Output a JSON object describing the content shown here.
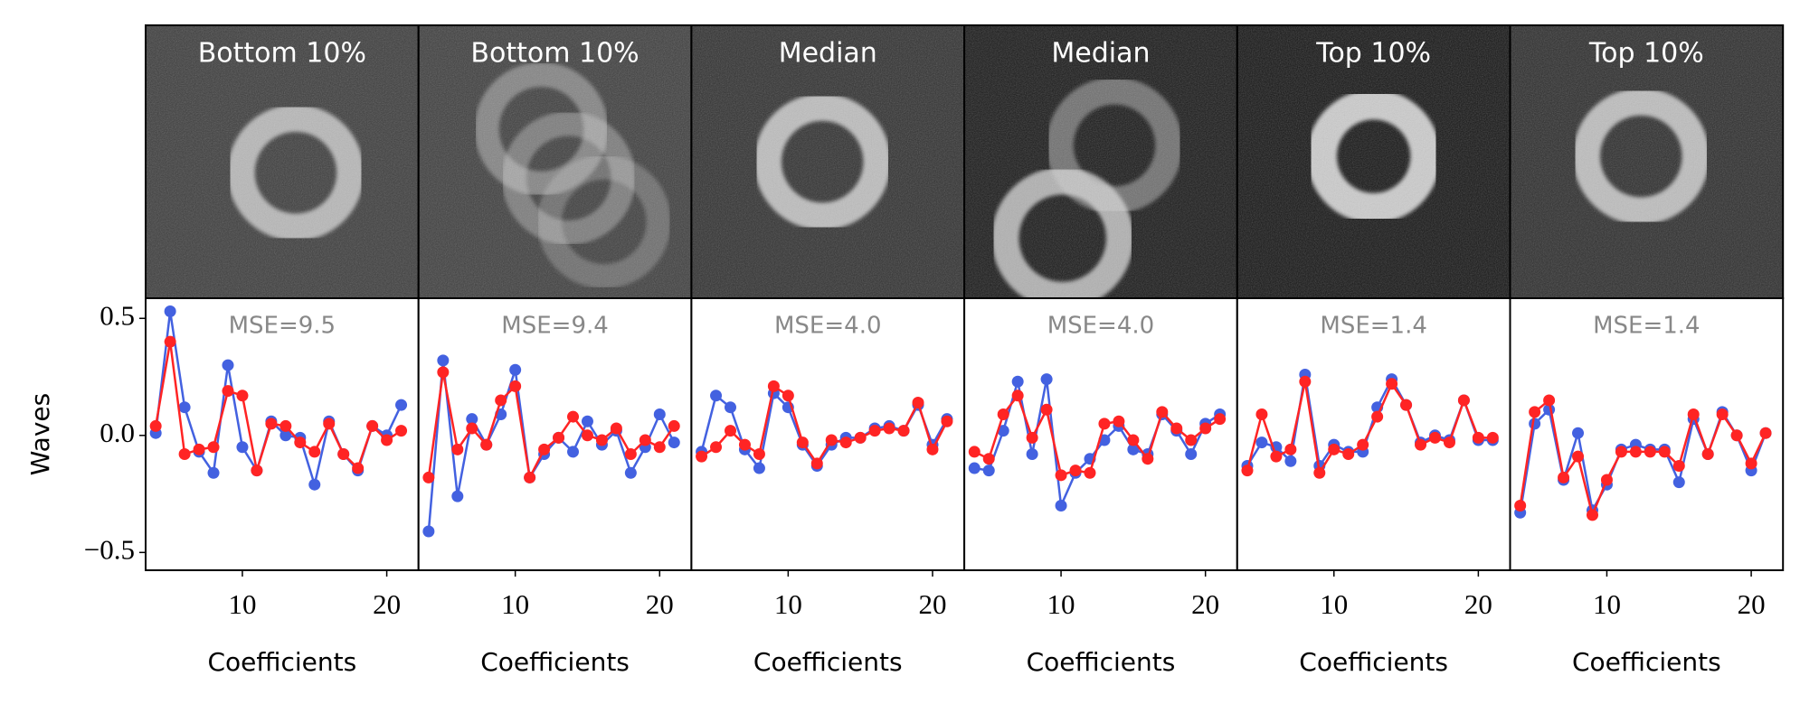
{
  "chart_data": [
    {
      "type": "line",
      "title": "Bottom 10%",
      "annotation": "MSE=9.5",
      "xlabel": "Coefficients",
      "ylabel": "Waves",
      "x": [
        4,
        5,
        6,
        7,
        8,
        9,
        10,
        11,
        12,
        13,
        14,
        15,
        16,
        17,
        18,
        19,
        20,
        21
      ],
      "series": [
        {
          "color": "#4361e0",
          "values": [
            0.01,
            0.53,
            0.12,
            -0.07,
            -0.16,
            0.3,
            -0.05,
            -0.15,
            0.06,
            0.0,
            -0.01,
            -0.21,
            0.06,
            -0.08,
            -0.15,
            0.04,
            0.0,
            0.13
          ]
        },
        {
          "color": "#ff2424",
          "values": [
            0.04,
            0.4,
            -0.08,
            -0.06,
            -0.05,
            0.19,
            0.17,
            -0.15,
            0.05,
            0.04,
            -0.03,
            -0.07,
            0.05,
            -0.08,
            -0.14,
            0.04,
            -0.02,
            0.02
          ]
        }
      ],
      "xlim": [
        3.3,
        22.2
      ],
      "ylim": [
        -0.576,
        0.586
      ],
      "xticks": [
        10,
        20
      ],
      "yticks": [
        {
          "value": -0.5,
          "label": "−0.5"
        },
        {
          "value": 0,
          "label": "0.0"
        },
        {
          "value": 0.5,
          "label": "0.5"
        }
      ]
    },
    {
      "type": "line",
      "title": "Bottom 10%",
      "annotation": "MSE=9.4",
      "xlabel": "Coefficients",
      "x": [
        4,
        5,
        6,
        7,
        8,
        9,
        10,
        11,
        12,
        13,
        14,
        15,
        16,
        17,
        18,
        19,
        20,
        21
      ],
      "series": [
        {
          "color": "#4361e0",
          "values": [
            -0.41,
            0.32,
            -0.26,
            0.07,
            -0.04,
            0.09,
            0.28,
            -0.18,
            -0.08,
            -0.01,
            -0.07,
            0.06,
            -0.04,
            0.02,
            -0.16,
            -0.05,
            0.09,
            -0.03
          ]
        },
        {
          "color": "#ff2424",
          "values": [
            -0.18,
            0.27,
            -0.06,
            0.03,
            -0.04,
            0.15,
            0.21,
            -0.18,
            -0.06,
            -0.01,
            0.08,
            0.0,
            -0.02,
            0.03,
            -0.08,
            -0.02,
            -0.05,
            0.04
          ]
        }
      ],
      "xlim": [
        3.3,
        22.2
      ],
      "ylim": [
        -0.576,
        0.586
      ],
      "xticks": [
        10,
        20
      ]
    },
    {
      "type": "line",
      "title": "Median",
      "annotation": "MSE=4.0",
      "xlabel": "Coefficients",
      "x": [
        4,
        5,
        6,
        7,
        8,
        9,
        10,
        11,
        12,
        13,
        14,
        15,
        16,
        17,
        18,
        19,
        20,
        21
      ],
      "series": [
        {
          "color": "#4361e0",
          "values": [
            -0.07,
            0.17,
            0.12,
            -0.06,
            -0.14,
            0.18,
            0.12,
            -0.04,
            -0.13,
            -0.04,
            -0.01,
            -0.01,
            0.03,
            0.04,
            0.02,
            0.13,
            -0.04,
            0.07
          ]
        },
        {
          "color": "#ff2424",
          "values": [
            -0.09,
            -0.05,
            0.02,
            -0.04,
            -0.08,
            0.21,
            0.17,
            -0.03,
            -0.12,
            -0.02,
            -0.03,
            -0.01,
            0.02,
            0.03,
            0.02,
            0.14,
            -0.06,
            0.06
          ]
        }
      ],
      "xlim": [
        3.3,
        22.2
      ],
      "ylim": [
        -0.576,
        0.586
      ],
      "xticks": [
        10,
        20
      ]
    },
    {
      "type": "line",
      "title": "Median",
      "annotation": "MSE=4.0",
      "xlabel": "Coefficients",
      "x": [
        4,
        5,
        6,
        7,
        8,
        9,
        10,
        11,
        12,
        13,
        14,
        15,
        16,
        17,
        18,
        19,
        20,
        21
      ],
      "series": [
        {
          "color": "#4361e0",
          "values": [
            -0.14,
            -0.15,
            0.02,
            0.23,
            -0.08,
            0.24,
            -0.3,
            -0.16,
            -0.1,
            -0.02,
            0.04,
            -0.06,
            -0.08,
            0.09,
            0.02,
            -0.08,
            0.05,
            0.09
          ]
        },
        {
          "color": "#ff2424",
          "values": [
            -0.07,
            -0.1,
            0.09,
            0.17,
            -0.01,
            0.11,
            -0.17,
            -0.15,
            -0.16,
            0.05,
            0.06,
            -0.02,
            -0.1,
            0.1,
            0.03,
            -0.02,
            0.03,
            0.07
          ]
        }
      ],
      "xlim": [
        3.3,
        22.2
      ],
      "ylim": [
        -0.576,
        0.586
      ],
      "xticks": [
        10,
        20
      ]
    },
    {
      "type": "line",
      "title": "Top 10%",
      "annotation": "MSE=1.4",
      "xlabel": "Coefficients",
      "x": [
        4,
        5,
        6,
        7,
        8,
        9,
        10,
        11,
        12,
        13,
        14,
        15,
        16,
        17,
        18,
        19,
        20,
        21
      ],
      "series": [
        {
          "color": "#4361e0",
          "values": [
            -0.13,
            -0.03,
            -0.05,
            -0.11,
            0.26,
            -0.13,
            -0.04,
            -0.07,
            -0.07,
            0.12,
            0.24,
            0.13,
            -0.03,
            0.0,
            -0.02,
            0.15,
            -0.02,
            -0.02
          ]
        },
        {
          "color": "#ff2424",
          "values": [
            -0.15,
            0.09,
            -0.09,
            -0.06,
            0.23,
            -0.16,
            -0.06,
            -0.08,
            -0.04,
            0.08,
            0.22,
            0.13,
            -0.04,
            -0.01,
            -0.03,
            0.15,
            -0.01,
            -0.01
          ]
        }
      ],
      "xlim": [
        3.3,
        22.2
      ],
      "ylim": [
        -0.576,
        0.586
      ],
      "xticks": [
        10,
        20
      ]
    },
    {
      "type": "line",
      "title": "Top 10%",
      "annotation": "MSE=1.4",
      "xlabel": "Coefficients",
      "x": [
        4,
        5,
        6,
        7,
        8,
        9,
        10,
        11,
        12,
        13,
        14,
        15,
        16,
        17,
        18,
        19,
        20,
        21
      ],
      "series": [
        {
          "color": "#4361e0",
          "values": [
            -0.33,
            0.05,
            0.11,
            -0.19,
            0.01,
            -0.32,
            -0.21,
            -0.06,
            -0.04,
            -0.06,
            -0.06,
            -0.2,
            0.07,
            -0.08,
            0.1,
            0.0,
            -0.15,
            0.01
          ]
        },
        {
          "color": "#ff2424",
          "values": [
            -0.3,
            0.1,
            0.15,
            -0.18,
            -0.09,
            -0.34,
            -0.19,
            -0.07,
            -0.07,
            -0.07,
            -0.07,
            -0.13,
            0.09,
            -0.08,
            0.09,
            0.0,
            -0.12,
            0.01
          ]
        }
      ],
      "xlim": [
        3.3,
        22.2
      ],
      "ylim": [
        -0.576,
        0.586
      ],
      "xticks": [
        10,
        20
      ]
    }
  ]
}
